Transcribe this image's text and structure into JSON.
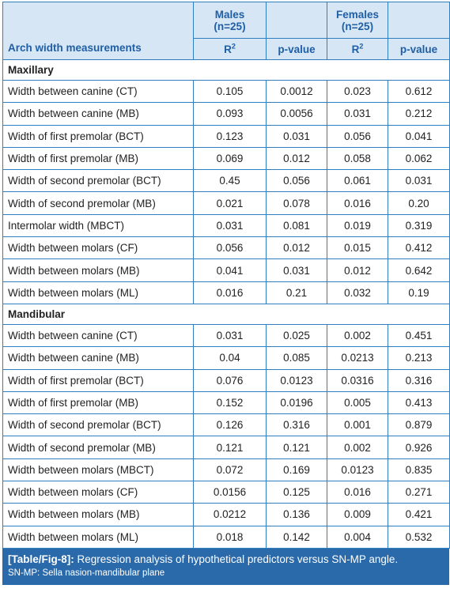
{
  "header": {
    "col1_label": "Arch width measurements",
    "males_label": "Males",
    "males_n": "(n=25)",
    "females_label": "Females",
    "females_n": "(n=25)",
    "r2_label": "R",
    "r2_sup": "2",
    "pvalue_label": "p-value"
  },
  "sections": [
    {
      "title": "Maxillary",
      "rows": [
        {
          "label": "Width between canine (CT)",
          "m_r2": "0.105",
          "m_p": "0.0012",
          "f_r2": "0.023",
          "f_p": "0.612"
        },
        {
          "label": "Width between canine (MB)",
          "m_r2": "0.093",
          "m_p": "0.0056",
          "f_r2": "0.031",
          "f_p": "0.212"
        },
        {
          "label": "Width of first premolar (BCT)",
          "m_r2": "0.123",
          "m_p": "0.031",
          "f_r2": "0.056",
          "f_p": "0.041"
        },
        {
          "label": "Width of first premolar (MB)",
          "m_r2": "0.069",
          "m_p": "0.012",
          "f_r2": "0.058",
          "f_p": "0.062"
        },
        {
          "label": "Width of second premolar (BCT)",
          "m_r2": "0.45",
          "m_p": "0.056",
          "f_r2": "0.061",
          "f_p": "0.031"
        },
        {
          "label": "Width of second premolar (MB)",
          "m_r2": "0.021",
          "m_p": "0.078",
          "f_r2": "0.016",
          "f_p": "0.20"
        },
        {
          "label": "Intermolar width (MBCT)",
          "m_r2": "0.031",
          "m_p": "0.081",
          "f_r2": "0.019",
          "f_p": "0.319"
        },
        {
          "label": "Width between molars (CF)",
          "m_r2": "0.056",
          "m_p": "0.012",
          "f_r2": "0.015",
          "f_p": "0.412"
        },
        {
          "label": "Width between molars (MB)",
          "m_r2": "0.041",
          "m_p": "0.031",
          "f_r2": "0.012",
          "f_p": "0.642"
        },
        {
          "label": "Width between molars (ML)",
          "m_r2": "0.016",
          "m_p": "0.21",
          "f_r2": "0.032",
          "f_p": "0.19"
        }
      ]
    },
    {
      "title": "Mandibular",
      "rows": [
        {
          "label": "Width between canine (CT)",
          "m_r2": "0.031",
          "m_p": "0.025",
          "f_r2": "0.002",
          "f_p": "0.451"
        },
        {
          "label": "Width between canine (MB)",
          "m_r2": "0.04",
          "m_p": "0.085",
          "f_r2": "0.0213",
          "f_p": "0.213"
        },
        {
          "label": "Width of first premolar (BCT)",
          "m_r2": "0.076",
          "m_p": "0.0123",
          "f_r2": "0.0316",
          "f_p": "0.316"
        },
        {
          "label": "Width of first premolar (MB)",
          "m_r2": "0.152",
          "m_p": "0.0196",
          "f_r2": "0.005",
          "f_p": "0.413"
        },
        {
          "label": "Width of second premolar (BCT)",
          "m_r2": "0.126",
          "m_p": "0.316",
          "f_r2": "0.001",
          "f_p": "0.879"
        },
        {
          "label": "Width of second premolar (MB)",
          "m_r2": "0.121",
          "m_p": "0.121",
          "f_r2": "0.002",
          "f_p": "0.926"
        },
        {
          "label": "Width between molars (MBCT)",
          "m_r2": "0.072",
          "m_p": "0.169",
          "f_r2": "0.0123",
          "f_p": "0.835"
        },
        {
          "label": "Width between molars (CF)",
          "m_r2": "0.0156",
          "m_p": "0.125",
          "f_r2": "0.016",
          "f_p": "0.271"
        },
        {
          "label": "Width between molars (MB)",
          "m_r2": "0.0212",
          "m_p": "0.136",
          "f_r2": "0.009",
          "f_p": "0.421"
        },
        {
          "label": "Width between molars (ML)",
          "m_r2": "0.018",
          "m_p": "0.142",
          "f_r2": "0.004",
          "f_p": "0.532"
        }
      ]
    }
  ],
  "caption": {
    "tag": "[Table/Fig-8]:",
    "text": " Regression analysis of hypothetical predictors versus SN-MP angle.",
    "note": "SN-MP: Sella nasion-mandibular plane"
  },
  "colors": {
    "border": "#2f7fc0",
    "header_bg": "#d6e6f4",
    "header_text": "#1f5fa6",
    "caption_bg": "#2a69aa"
  }
}
